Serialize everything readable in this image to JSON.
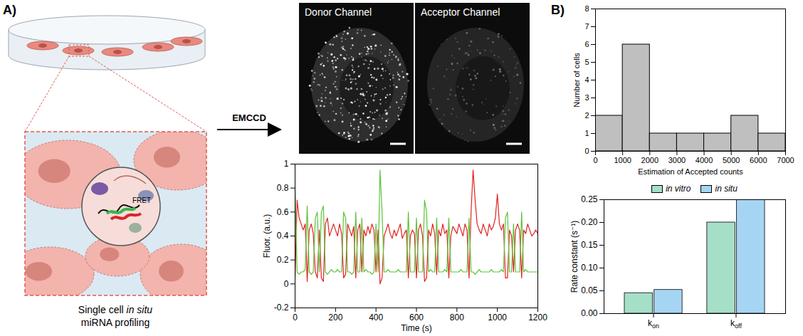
{
  "panel_labels": [
    "A)",
    "B)"
  ],
  "diagram": {
    "detail_label": "FRET",
    "caption": "Single cell in situ miRNA profiling",
    "caption_italic": "in situ",
    "arrow_label": "EMCCD"
  },
  "images": [
    "Donor Channel",
    "Acceptor Channel"
  ],
  "chart_data": [
    {
      "type": "line",
      "xlabel": "Time (s)",
      "ylabel": "Fluor. (a.u.)",
      "xlim": [
        0,
        1200
      ],
      "xticks": [
        0,
        200,
        400,
        600,
        800,
        1000,
        1200
      ],
      "ylim": [
        -0.2,
        1
      ],
      "yticks": [
        -0.2,
        0,
        0.2,
        0.4,
        0.6,
        0.8,
        1
      ],
      "x": [
        0,
        10,
        20,
        30,
        40,
        50,
        60,
        70,
        80,
        90,
        100,
        110,
        120,
        130,
        140,
        150,
        160,
        170,
        180,
        190,
        200,
        210,
        220,
        230,
        240,
        250,
        260,
        270,
        280,
        290,
        300,
        310,
        320,
        330,
        340,
        350,
        360,
        370,
        380,
        390,
        400,
        410,
        420,
        430,
        440,
        450,
        460,
        470,
        480,
        490,
        500,
        510,
        520,
        530,
        540,
        550,
        560,
        570,
        580,
        590,
        600,
        610,
        620,
        630,
        640,
        650,
        660,
        670,
        680,
        690,
        700,
        710,
        720,
        730,
        740,
        750,
        760,
        770,
        780,
        790,
        800,
        810,
        820,
        830,
        840,
        850,
        860,
        870,
        880,
        890,
        900,
        910,
        920,
        930,
        940,
        950,
        960,
        970,
        980,
        990,
        1000,
        1010,
        1020,
        1030,
        1040,
        1050,
        1060,
        1070,
        1080,
        1090,
        1100,
        1110,
        1120,
        1130,
        1140,
        1150,
        1160,
        1170,
        1180,
        1190,
        1200
      ],
      "series": [
        {
          "color": "#e0231f",
          "values": [
            0.05,
            0.7,
            0.55,
            0.5,
            0.45,
            0.5,
            0.02,
            0.45,
            0.5,
            0.42,
            0.1,
            0.05,
            0.45,
            0.05,
            0.02,
            0.5,
            0.55,
            0.4,
            0.45,
            0.5,
            0.45,
            0.4,
            0.5,
            0.42,
            0.05,
            0.08,
            0.5,
            0.45,
            0.4,
            0.48,
            0.05,
            0.45,
            0.5,
            0.1,
            0.45,
            0.4,
            0.48,
            0.42,
            0.5,
            0.45,
            0.1,
            0.45,
            0,
            0.05,
            0.4,
            0.45,
            0.5,
            0.42,
            0.38,
            0.45,
            0.4,
            0.45,
            0.5,
            0.38,
            0.42,
            0.45,
            0.05,
            0.4,
            0.45,
            0.42,
            0.05,
            0.45,
            0.5,
            0.4,
            0.02,
            0.05,
            0.45,
            0.4,
            0.5,
            0.42,
            0.08,
            0.45,
            0.4,
            0.5,
            0.42,
            0.45,
            0.05,
            0.4,
            0.48,
            0.45,
            0.42,
            0.5,
            0.45,
            0.4,
            0.5,
            0.45,
            0.05,
            0.6,
            0.95,
            0.7,
            0.5,
            0.45,
            0.42,
            0.5,
            0.45,
            0.4,
            0.5,
            0.45,
            0.48,
            0.55,
            0.75,
            0.5,
            0.45,
            0.5,
            0.05,
            0.05,
            0.45,
            0.4,
            0.1,
            0.45,
            0.5,
            0.45,
            0.05,
            0.45,
            0.42,
            0.5,
            0.45,
            0.4,
            0.42,
            0.45,
            0.42
          ]
        },
        {
          "color": "#5cc43a",
          "values": [
            0.8,
            0.1,
            0.08,
            0.1,
            0.1,
            0.12,
            0.65,
            0.1,
            0.08,
            0.1,
            0.55,
            0.6,
            0.1,
            0.6,
            0.65,
            0.1,
            0.08,
            0.1,
            0.12,
            0.1,
            0.1,
            0.12,
            0.1,
            0.1,
            0.6,
            0.55,
            0.1,
            0.1,
            0.08,
            0.1,
            0.6,
            0.1,
            0.1,
            0.55,
            0.1,
            0.12,
            0.1,
            0.1,
            0.08,
            0.1,
            0.5,
            0.1,
            0.95,
            0.6,
            0.1,
            0.1,
            0.12,
            0.1,
            0.1,
            0.1,
            0.1,
            0.12,
            0.1,
            0.1,
            0.1,
            0.1,
            0.6,
            0.1,
            0.1,
            0.1,
            0.55,
            0.1,
            0.1,
            0.1,
            0.7,
            0.6,
            0.1,
            0.12,
            0.1,
            0.1,
            0.55,
            0.1,
            0.1,
            0.1,
            0.12,
            0.1,
            0.55,
            0.1,
            0.1,
            0.1,
            0.1,
            0.1,
            0.12,
            0.1,
            0.1,
            0.1,
            0.55,
            0.1,
            0.1,
            0.08,
            0.1,
            0.12,
            0.1,
            0.1,
            0.1,
            0.1,
            0.1,
            0.12,
            0.1,
            0.1,
            0.1,
            0.1,
            0.12,
            0.1,
            0.55,
            0.6,
            0.1,
            0.1,
            0.5,
            0.1,
            0.1,
            0.1,
            0.6,
            0.1,
            0.12,
            0.1,
            0.1,
            0.1,
            0.1,
            0.1,
            0.1
          ]
        }
      ]
    },
    {
      "type": "histogram",
      "xlabel": "Estimation of Accepted counts",
      "ylabel": "Number of cells",
      "bins": [
        0,
        1000,
        2000,
        3000,
        4000,
        5000,
        6000,
        7000
      ],
      "values": [
        2,
        6,
        1,
        1,
        1,
        2,
        1
      ],
      "color": "#bfbfbf",
      "xlim": [
        0,
        7000
      ],
      "xticks": [
        0,
        1000,
        2000,
        3000,
        4000,
        5000,
        6000,
        7000
      ],
      "ylim": [
        0,
        8
      ],
      "yticks": [
        0,
        1,
        2,
        3,
        4,
        5,
        6,
        7,
        8
      ]
    },
    {
      "type": "bar",
      "ylabel": "Rate constant (s⁻¹)",
      "categories": [
        "kon",
        "koff"
      ],
      "series": [
        {
          "name": "in vitro",
          "color": "#a6dfc8",
          "values": [
            0.045,
            0.2
          ]
        },
        {
          "name": "in situ",
          "color": "#a6d5f3",
          "values": [
            0.052,
            0.25
          ]
        }
      ],
      "ylim": [
        0,
        0.25
      ],
      "yticks": [
        {
          "value": 0,
          "label": "0.00"
        },
        0.05,
        {
          "value": 0.1,
          "label": "0.10"
        },
        0.15,
        {
          "value": 0.2,
          "label": "0.20"
        },
        0.25
      ],
      "legend": "top"
    }
  ]
}
